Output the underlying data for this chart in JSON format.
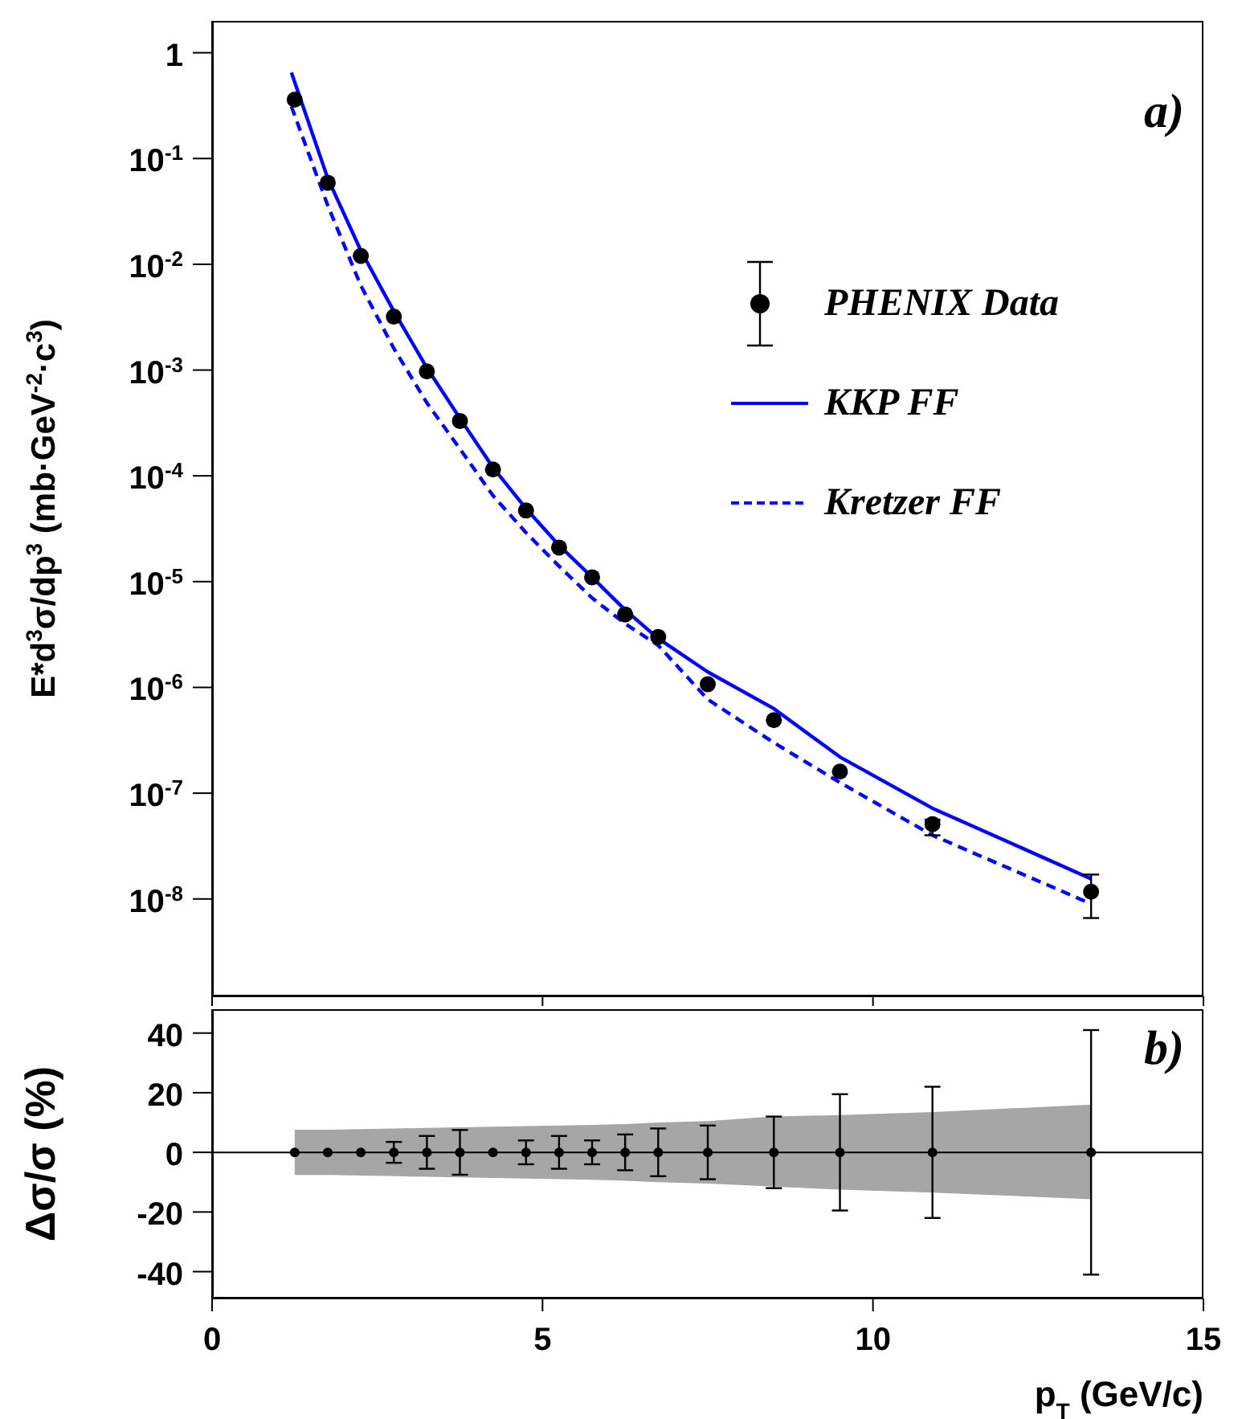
{
  "chart_data": [
    {
      "type": "scatter",
      "ylabel": "E*d$^{3}$σ/dp$^{3}$ (mb·GeV$^{-2}$·c$^{3}$)",
      "annotations": [
        "a)"
      ],
      "log": "y",
      "xlim": [
        0,
        15
      ],
      "xticks": [
        0,
        5,
        10,
        15
      ],
      "ylim": [
        1.2e-09,
        2
      ],
      "yticks": [
        {
          "value": 1e-08,
          "label": "10$^{-8}$"
        },
        {
          "value": 1e-07,
          "label": "10$^{-7}$"
        },
        {
          "value": 1e-06,
          "label": "10$^{-6}$"
        },
        {
          "value": 1e-05,
          "label": "10$^{-5}$"
        },
        {
          "value": 0.0001,
          "label": "10$^{-4}$"
        },
        {
          "value": 0.001,
          "label": "10$^{-3}$"
        },
        {
          "value": 0.01,
          "label": "10$^{-2}$"
        },
        {
          "value": 0.1,
          "label": "10$^{-1}$"
        },
        1
      ],
      "tick_labels": "y",
      "legend": "right",
      "series": [
        {
          "name": "PHENIX Data",
          "type": "scatter",
          "marker": "circle",
          "color": "#000000",
          "x": [
            1.25,
            1.75,
            2.25,
            2.75,
            3.25,
            3.75,
            4.25,
            4.75,
            5.25,
            5.75,
            6.25,
            6.75,
            7.5,
            8.5,
            9.5,
            10.9,
            13.3
          ],
          "values": [
            0.36,
            0.059,
            0.012,
            0.0032,
            0.00097,
            0.00033,
            0.000115,
            4.7e-05,
            2.1e-05,
            1.1e-05,
            4.9e-06,
            3e-06,
            1.07e-06,
            4.9e-07,
            1.6e-07,
            5.1e-08,
            1.17e-08
          ],
          "errors": [
            null,
            null,
            null,
            null,
            null,
            null,
            null,
            null,
            null,
            null,
            null,
            null,
            null,
            null,
            null,
            [
              4e-08,
              5.6e-08
            ],
            [
              6.6e-09,
              1.7e-08
            ]
          ]
        },
        {
          "name": "KKP FF",
          "type": "line",
          "marker": "none",
          "color": "#0000ff",
          "line_style": "solid",
          "x": [
            1.2,
            1.75,
            2.25,
            2.75,
            3.25,
            3.75,
            4.25,
            4.75,
            5.25,
            5.75,
            6.25,
            6.75,
            7.5,
            8.5,
            9.5,
            10.9,
            13.3
          ],
          "values": [
            0.65,
            0.065,
            0.0135,
            0.0036,
            0.00105,
            0.00035,
            0.00012,
            4.9e-05,
            2.2e-05,
            1.1e-05,
            5.4e-06,
            2.9e-06,
            1.4e-06,
            6.3e-07,
            2.2e-07,
            7.2e-08,
            1.55e-08
          ]
        },
        {
          "name": "Kretzer FF",
          "type": "line",
          "marker": "none",
          "color": "#0000ff",
          "line_style": "dashed",
          "x": [
            1.2,
            1.75,
            2.25,
            2.75,
            3.25,
            3.75,
            4.25,
            4.75,
            5.25,
            5.75,
            6.25,
            6.75,
            7.5,
            8.5,
            9.5,
            10.9,
            13.3
          ],
          "values": [
            0.31,
            0.036,
            0.0063,
            0.0016,
            0.00049,
            0.00018,
            6.5e-05,
            2.9e-05,
            1.4e-05,
            7e-06,
            4e-06,
            2.5e-06,
            7.7e-07,
            3e-07,
            1.26e-07,
            4e-08,
            9e-09
          ]
        }
      ]
    },
    {
      "type": "scatter",
      "xlabel": "p$_{T}$ (GeV/c)",
      "ylabel": "Δσ/σ (%)",
      "annotations": [
        "b)"
      ],
      "xlim": [
        0,
        15
      ],
      "xticks": [
        0,
        5,
        10,
        15
      ],
      "ylim": [
        -49,
        48
      ],
      "yticks": [
        -40,
        -20,
        0,
        20,
        40
      ],
      "marker": "circle",
      "ref_lines": [
        {
          "axis": "y",
          "value": 0,
          "color": "#000000"
        }
      ],
      "series": [
        {
          "type": "scatter",
          "color": "#000000",
          "x": [
            1.25,
            1.75,
            2.25,
            2.75,
            3.25,
            3.75,
            4.25,
            4.75,
            5.25,
            5.75,
            6.25,
            6.75,
            7.5,
            8.5,
            9.5,
            10.9,
            13.3
          ],
          "values": [
            0,
            0,
            0,
            0,
            0,
            0,
            0,
            0,
            0,
            0,
            0,
            0,
            0,
            0,
            0,
            0,
            0
          ],
          "errors": [
            null,
            null,
            null,
            3.5,
            5.5,
            7.5,
            null,
            4,
            5.5,
            4,
            6,
            8,
            9,
            12,
            19.5,
            22,
            41
          ],
          "upper": [
            7.6,
            7.6,
            7.8,
            8,
            8.2,
            8.4,
            8.6,
            8.8,
            9,
            9.2,
            9.5,
            10,
            10.5,
            12,
            12.5,
            13.5,
            16
          ],
          "lower": [
            -7.6,
            -7.6,
            -7.8,
            -8,
            -8.2,
            -8.4,
            -8.6,
            -8.8,
            -9,
            -9.2,
            -9.5,
            -10,
            -10.5,
            -11.5,
            -12.5,
            -13.5,
            -15.7
          ]
        }
      ]
    }
  ]
}
